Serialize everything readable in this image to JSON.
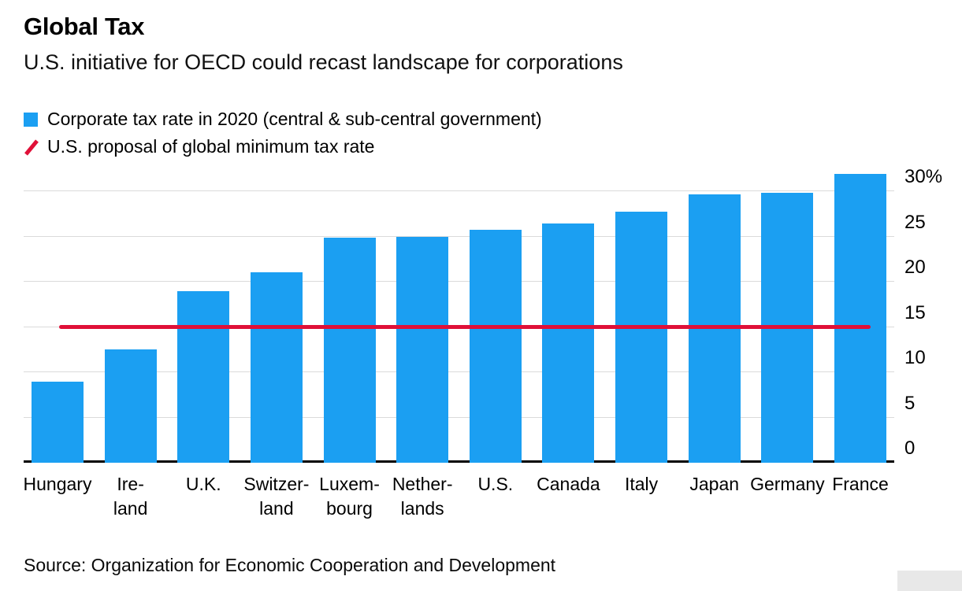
{
  "header": {
    "title": "Global Tax",
    "subtitle": "U.S. initiative for OECD could recast landscape for corporations"
  },
  "legend": [
    {
      "marker": "blue-square",
      "label": "Corporate tax rate in 2020 (central & sub-central government)"
    },
    {
      "marker": "red-slash",
      "label": "U.S. proposal of global minimum tax rate"
    }
  ],
  "chart_data": {
    "type": "bar",
    "title": "Global Tax",
    "subtitle": "U.S. initiative for OECD could recast landscape for corporations",
    "unit": "%",
    "categories": [
      "Hungary",
      "Ireland",
      "U.K.",
      "Switzerland",
      "Luxembourg",
      "Netherlands",
      "U.S.",
      "Canada",
      "Italy",
      "Japan",
      "Germany",
      "France"
    ],
    "category_labels": [
      [
        "Hungary"
      ],
      [
        "Ire-",
        "land"
      ],
      [
        "U.K."
      ],
      [
        "Switzer-",
        "land"
      ],
      [
        "Luxem-",
        "bourg"
      ],
      [
        "Nether-",
        "lands"
      ],
      [
        "U.S."
      ],
      [
        "Canada"
      ],
      [
        "Italy"
      ],
      [
        "Japan"
      ],
      [
        "Germany"
      ],
      [
        "France"
      ]
    ],
    "values": [
      9,
      12.5,
      19,
      21.1,
      24.9,
      25,
      25.8,
      26.5,
      27.8,
      29.7,
      29.9,
      32
    ],
    "series_name": "Corporate tax rate in 2020 (central & sub-central government)",
    "reference_line": {
      "value": 15,
      "label": "U.S. proposal of global minimum tax rate"
    },
    "yticks": [
      0,
      5,
      10,
      15,
      20,
      25,
      30
    ],
    "ytick_labels": [
      "0",
      "5",
      "10",
      "15",
      "20",
      "25",
      "30%"
    ],
    "ylim": [
      0,
      33
    ],
    "grid": "horizontal",
    "legend_position": "top-left",
    "bar_color": "#1b9ff2",
    "line_color": "#e01038"
  },
  "source": {
    "text": "Source: Organization for Economic Cooperation and Development"
  }
}
